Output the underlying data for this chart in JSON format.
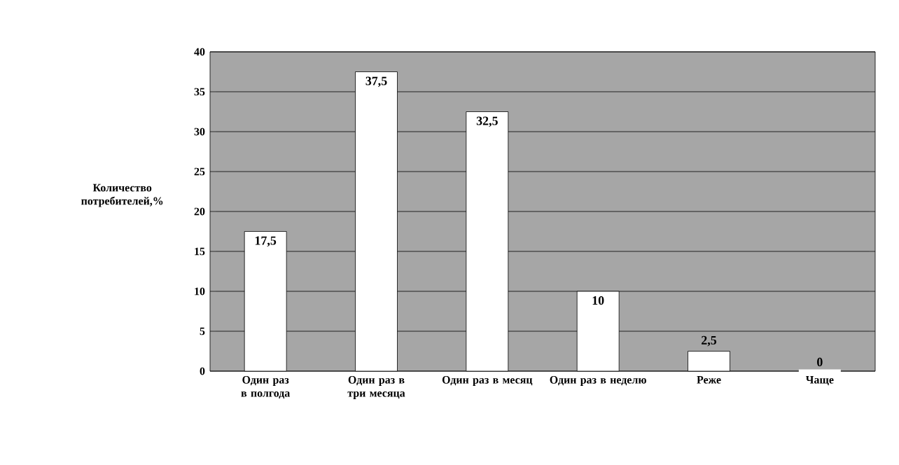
{
  "chart_data": {
    "type": "bar",
    "ylabel": "Количество потребителей,%",
    "categories": [
      "Один раз в полгода",
      "Один раз в три месяца",
      "Один раз в месяц",
      "Один раз в неделю",
      "Реже",
      "Чаще"
    ],
    "values": [
      17.5,
      37.5,
      32.5,
      10,
      2.5,
      0
    ],
    "value_labels": [
      "17,5",
      "37,5",
      "32,5",
      "10",
      "2,5",
      "0"
    ],
    "color": "#ffffff",
    "ylim": [
      0,
      40
    ],
    "yticks": [
      0,
      5,
      10,
      15,
      20,
      25,
      30,
      35,
      40
    ],
    "grid": "y"
  }
}
